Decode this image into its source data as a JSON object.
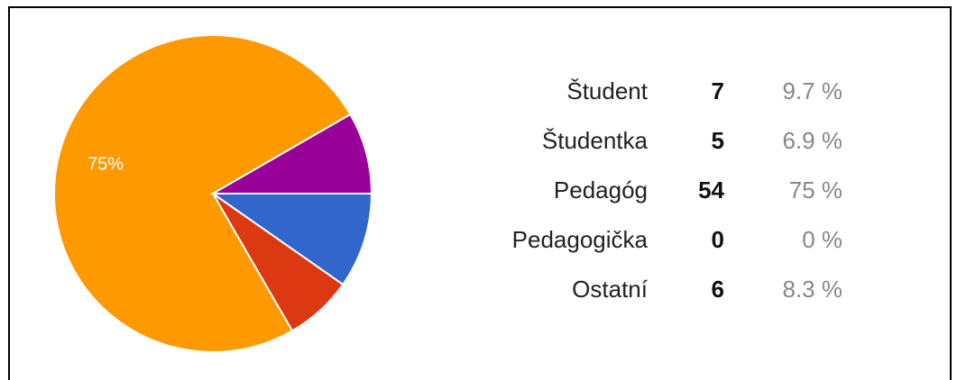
{
  "chart_data": {
    "type": "pie",
    "categories": [
      "Študent",
      "Študentka",
      "Pedagóg",
      "Pedagogička",
      "Ostatní"
    ],
    "values": [
      7,
      5,
      54,
      0,
      6
    ],
    "percentages": [
      9.7,
      6.9,
      75,
      0,
      8.3
    ],
    "percentage_labels": [
      "9.7 %",
      "6.9 %",
      "75 %",
      "0 %",
      "8.3 %"
    ],
    "slice_labels": [
      null,
      null,
      "75%",
      null,
      null
    ],
    "colors": [
      "#3366cc",
      "#dc3912",
      "#ff9900",
      "#109618",
      "#990099"
    ]
  }
}
